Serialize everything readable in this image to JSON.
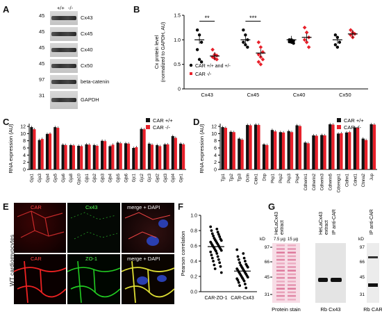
{
  "panels": {
    "A": {
      "letter": "A",
      "lanes": [
        "+/+",
        "-/-"
      ],
      "blots": [
        {
          "mw": "45",
          "label": "Cx43"
        },
        {
          "mw": "45",
          "label": "Cx45"
        },
        {
          "mw": "45",
          "label": "Cx40"
        },
        {
          "mw": "45",
          "label": "Cx50"
        },
        {
          "mw": "97",
          "label": "beta-catenin"
        },
        {
          "mw": "31",
          "label": "GAPDH"
        }
      ]
    },
    "B": {
      "letter": "B",
      "ylabel": "Cx protein level\n(normalized to GAPDH, AU)",
      "legend": [
        "CAR +/+ and +/-",
        "CAR -/-"
      ],
      "sig": [
        "**",
        "***"
      ]
    },
    "C": {
      "letter": "C",
      "legend": [
        "CAR +/+",
        "CAR -/-"
      ],
      "ylabel": "RNA expression (AU)"
    },
    "D": {
      "letter": "D",
      "legend": [
        "CAR +/+",
        "CAR -/-"
      ],
      "ylabel": "RNA expression (AU)"
    },
    "E": {
      "letter": "E",
      "side_label": "WT cardiomyocytes",
      "row1": [
        "CAR",
        "Cx43",
        "merge + DAPI"
      ],
      "row2": [
        "CAR",
        "ZO-1",
        "merge + DAPI"
      ]
    },
    "F": {
      "letter": "F",
      "ylabel": "Pearson correlation",
      "categories": [
        "CAR-ZO-1",
        "CAR-Cx43"
      ]
    },
    "G": {
      "letter": "G",
      "col1_header": "HeLaCx43\nextract",
      "col1_loads": [
        "7.5 µg",
        "15 µg"
      ],
      "col2_header": "HeLaCx43\nextract",
      "col2_ip": "IP anti-CAR",
      "col3_ip": "IP anti-CAR",
      "kd": "kD",
      "mw1": [
        "97",
        "66",
        "45",
        "31"
      ],
      "mw3": [
        "97",
        "66",
        "45",
        "31"
      ],
      "captions": [
        "Protein stain",
        "Rb Cx43",
        "Rb CAR"
      ]
    }
  },
  "chart_data": [
    {
      "type": "scatter",
      "title": "",
      "ylabel": "Cx protein level (normalized to GAPDH, AU)",
      "categories": [
        "Cx43",
        "Cx45",
        "Cx40",
        "Cx50"
      ],
      "ylim": [
        0,
        1.5
      ],
      "yticks": [
        "0",
        "0.5",
        "1.0",
        "1.5"
      ],
      "series": [
        {
          "name": "CAR +/+ and +/-",
          "color": "#000000",
          "means": [
            1.0,
            1.0,
            1.0,
            1.0
          ],
          "points": [
            [
              1.2,
              1.1,
              0.95,
              0.8,
              0.6,
              0.55
            ],
            [
              1.2,
              1.1,
              1.0,
              0.95,
              0.9,
              0.85
            ],
            [
              1.0,
              1.0,
              0.98,
              0.96,
              0.95,
              0.93
            ],
            [
              1.1,
              1.05,
              0.95,
              0.9,
              0.85
            ]
          ]
        },
        {
          "name": "CAR -/-",
          "color": "#e8202a",
          "means": [
            0.67,
            0.73,
            1.05,
            1.12
          ],
          "points": [
            [
              0.8,
              0.7,
              0.68,
              0.65,
              0.62,
              0.6
            ],
            [
              0.95,
              0.85,
              0.75,
              0.7,
              0.65,
              0.6,
              0.55,
              0.5
            ],
            [
              1.25,
              1.15,
              1.05,
              1.0,
              0.95,
              0.85
            ],
            [
              1.2,
              1.15,
              1.12,
              1.1,
              1.05
            ]
          ]
        }
      ]
    },
    {
      "type": "bar",
      "ylabel": "RNA expression (AU)",
      "ylim": [
        0,
        12
      ],
      "yticks": [
        "0",
        "2",
        "4",
        "6",
        "8",
        "10",
        "12"
      ],
      "categories": [
        "Gja1",
        "Gja3",
        "Gja4",
        "Gja5",
        "Gja6",
        "Gja8",
        "Gja10",
        "Gjb1",
        "Gjb2",
        "Gjb3",
        "Gjb4",
        "Gjb5",
        "Gjb6",
        "Gjc1",
        "Gjc2",
        "Gjc3",
        "Gjd2",
        "Gjd3",
        "Gjd4",
        "Gje1"
      ],
      "series": [
        {
          "name": "CAR +/+",
          "color": "#111111",
          "values": [
            11.8,
            8.2,
            9.9,
            11.8,
            6.9,
            6.8,
            6.6,
            7.0,
            6.8,
            8.0,
            6.5,
            7.5,
            7.3,
            6.0,
            11.3,
            7.2,
            6.8,
            7.0,
            9.3,
            7.2
          ]
        },
        {
          "name": "CAR -/-",
          "color": "#e8202a",
          "values": [
            11.2,
            8.5,
            10.0,
            11.6,
            6.8,
            6.7,
            6.5,
            6.9,
            6.6,
            7.9,
            6.9,
            7.3,
            7.2,
            6.2,
            11.2,
            6.9,
            6.5,
            7.0,
            8.8,
            7.0
          ]
        }
      ]
    },
    {
      "type": "bar",
      "ylabel": "RNA expression (AU)",
      "ylim": [
        0,
        12
      ],
      "yticks": [
        "0",
        "2",
        "4",
        "6",
        "8",
        "10",
        "12"
      ],
      "categories": [
        "Tjp1",
        "Tjp2",
        "Tjp3",
        "Ocln",
        "Cldn1",
        "Dsp",
        "Pkp1",
        "Pkp2",
        "Pkp3",
        "Pkp4",
        "Cdherin1",
        "Cdherin2",
        "Cdherin3",
        "Cdherin5",
        "Cdsengn1",
        "Cldhn1",
        "Cdnd1",
        "Ctnna2",
        "Jup"
      ],
      "series": [
        {
          "name": "CAR +/+",
          "color": "#111111",
          "values": [
            11.8,
            10.5,
            8.6,
            12.4,
            12.5,
            7.0,
            11.0,
            10.4,
            10.7,
            12.3,
            7.5,
            9.5,
            9.6,
            12.6,
            10.0,
            10.3,
            11.7,
            8.6,
            12.6
          ]
        },
        {
          "name": "CAR -/-",
          "color": "#e8202a",
          "values": [
            11.6,
            10.4,
            8.3,
            12.3,
            12.4,
            6.8,
            10.6,
            10.3,
            10.4,
            12.1,
            7.3,
            9.4,
            9.5,
            12.5,
            10.1,
            10.4,
            11.6,
            8.2,
            12.5
          ]
        }
      ]
    },
    {
      "type": "scatter",
      "ylabel": "Pearson correlation",
      "categories": [
        "CAR-ZO-1",
        "CAR-Cx43"
      ],
      "ylim": [
        0,
        1.0
      ],
      "yticks": [
        "0.0",
        "0.2",
        "0.4",
        "0.6",
        "0.8",
        "1.0"
      ],
      "means": [
        0.59,
        0.27
      ],
      "points": [
        [
          0.85,
          0.82,
          0.8,
          0.78,
          0.76,
          0.75,
          0.73,
          0.72,
          0.7,
          0.69,
          0.68,
          0.67,
          0.66,
          0.65,
          0.64,
          0.63,
          0.62,
          0.61,
          0.6,
          0.59,
          0.58,
          0.57,
          0.56,
          0.55,
          0.54,
          0.53,
          0.52,
          0.5,
          0.48,
          0.46,
          0.44,
          0.42,
          0.4,
          0.38,
          0.35,
          0.33,
          0.3,
          0.25
        ],
        [
          0.55,
          0.5,
          0.46,
          0.44,
          0.42,
          0.4,
          0.38,
          0.36,
          0.35,
          0.34,
          0.33,
          0.32,
          0.31,
          0.3,
          0.29,
          0.28,
          0.27,
          0.26,
          0.25,
          0.24,
          0.23,
          0.22,
          0.21,
          0.2,
          0.19,
          0.18,
          0.17,
          0.16,
          0.15,
          0.14,
          0.12,
          0.1,
          0.08,
          0.05
        ]
      ]
    }
  ]
}
